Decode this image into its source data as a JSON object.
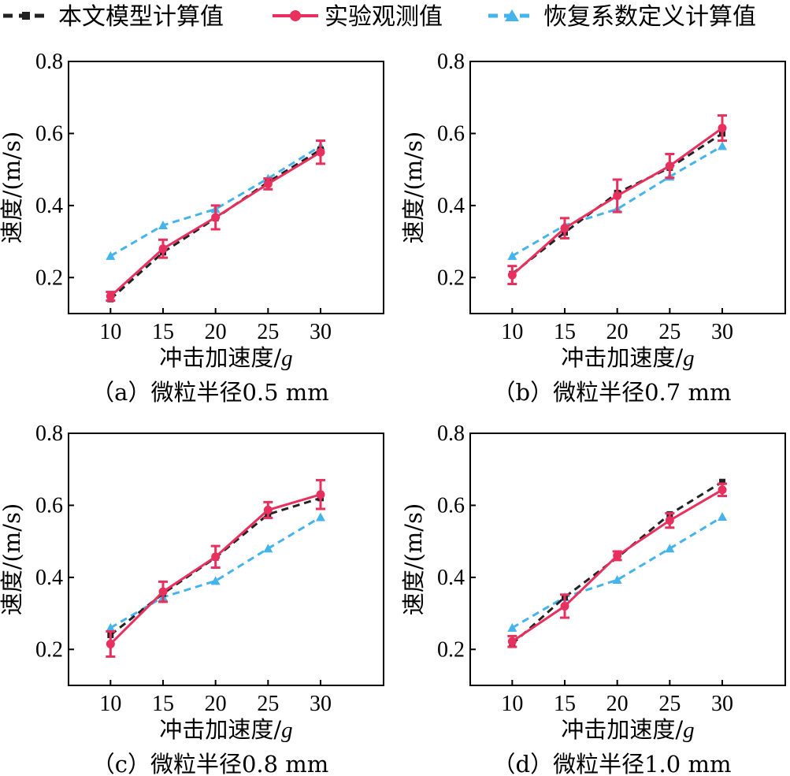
{
  "colors": {
    "model": "#222222",
    "observed": "#e8305e",
    "restitution": "#45b3ec"
  },
  "legend": {
    "model_label": "本文模型计算值",
    "observed_label": "实验观测值",
    "restitution_label": "恢复系数定义计算值"
  },
  "chart_data": [
    {
      "type": "line",
      "caption": "（a）微粒半径0.5 mm",
      "xlabel": "冲击加速度/",
      "xlabel_unit": "g",
      "ylabel": "速度/(m/s)",
      "x": [
        10,
        15,
        20,
        25,
        30
      ],
      "xticks": [
        "10",
        "15",
        "20",
        "25",
        "30"
      ],
      "yticks": [
        "0.2",
        "0.4",
        "0.6",
        "0.8"
      ],
      "xlim": [
        6,
        36
      ],
      "ylim": [
        0.1,
        0.8
      ],
      "series": [
        {
          "name": "本文模型计算值",
          "key": "model",
          "values": [
            0.14,
            0.27,
            0.365,
            0.465,
            0.555
          ]
        },
        {
          "name": "实验观测值",
          "key": "observed",
          "values": [
            0.148,
            0.28,
            0.367,
            0.46,
            0.548
          ],
          "errors": [
            0.012,
            0.025,
            0.033,
            0.015,
            0.032
          ]
        },
        {
          "name": "恢复系数定义计算值",
          "key": "restitution",
          "values": [
            0.26,
            0.345,
            0.39,
            0.475,
            0.565
          ]
        }
      ]
    },
    {
      "type": "line",
      "caption": "（b）微粒半径0.7 mm",
      "xlabel": "冲击加速度/",
      "xlabel_unit": "g",
      "ylabel": "速度/(m/s)",
      "x": [
        10,
        15,
        20,
        25,
        30
      ],
      "xticks": [
        "10",
        "15",
        "20",
        "25",
        "30"
      ],
      "yticks": [
        "0.2",
        "0.4",
        "0.6",
        "0.8"
      ],
      "xlim": [
        6,
        36
      ],
      "ylim": [
        0.1,
        0.8
      ],
      "series": [
        {
          "name": "本文模型计算值",
          "key": "model",
          "values": [
            0.21,
            0.325,
            0.435,
            0.505,
            0.6
          ]
        },
        {
          "name": "实验观测值",
          "key": "observed",
          "values": [
            0.207,
            0.337,
            0.427,
            0.51,
            0.615
          ],
          "errors": [
            0.025,
            0.028,
            0.045,
            0.033,
            0.035
          ]
        },
        {
          "name": "恢复系数定义计算值",
          "key": "restitution",
          "values": [
            0.26,
            0.345,
            0.39,
            0.48,
            0.565
          ]
        }
      ]
    },
    {
      "type": "line",
      "caption": "（c）微粒半径0.8 mm",
      "xlabel": "冲击加速度/",
      "xlabel_unit": "g",
      "ylabel": "速度/(m/s)",
      "x": [
        10,
        15,
        20,
        25,
        30
      ],
      "xticks": [
        "10",
        "15",
        "20",
        "25",
        "30"
      ],
      "yticks": [
        "0.2",
        "0.4",
        "0.6",
        "0.8"
      ],
      "xlim": [
        6,
        36
      ],
      "ylim": [
        0.1,
        0.8
      ],
      "series": [
        {
          "name": "本文模型计算值",
          "key": "model",
          "values": [
            0.24,
            0.355,
            0.455,
            0.575,
            0.62
          ]
        },
        {
          "name": "实验观测值",
          "key": "observed",
          "values": [
            0.215,
            0.36,
            0.457,
            0.587,
            0.63
          ],
          "errors": [
            0.035,
            0.028,
            0.03,
            0.022,
            0.04
          ]
        },
        {
          "name": "恢复系数定义计算值",
          "key": "restitution",
          "values": [
            0.26,
            0.345,
            0.39,
            0.48,
            0.567
          ]
        }
      ]
    },
    {
      "type": "line",
      "caption": "（d）微粒半径1.0 mm",
      "xlabel": "冲击加速度/",
      "xlabel_unit": "g",
      "ylabel": "速度/(m/s)",
      "x": [
        10,
        15,
        20,
        25,
        30
      ],
      "xticks": [
        "10",
        "15",
        "20",
        "25",
        "30"
      ],
      "yticks": [
        "0.2",
        "0.4",
        "0.6",
        "0.8"
      ],
      "xlim": [
        6,
        36
      ],
      "ylim": [
        0.1,
        0.8
      ],
      "series": [
        {
          "name": "本文模型计算值",
          "key": "model",
          "values": [
            0.215,
            0.345,
            0.455,
            0.575,
            0.665
          ]
        },
        {
          "name": "实验观测值",
          "key": "observed",
          "values": [
            0.222,
            0.32,
            0.46,
            0.558,
            0.643
          ],
          "errors": [
            0.015,
            0.032,
            0.012,
            0.02,
            0.017
          ]
        },
        {
          "name": "恢复系数定义计算值",
          "key": "restitution",
          "values": [
            0.26,
            0.345,
            0.393,
            0.48,
            0.568
          ]
        }
      ]
    }
  ]
}
